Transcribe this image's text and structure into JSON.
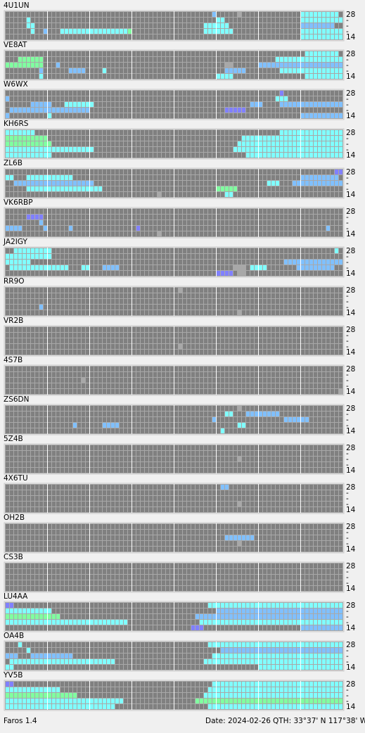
{
  "band_labels": [
    "28",
    "-",
    "-",
    "-",
    "14"
  ],
  "palette": {
    "c": "#80ffff",
    "b": "#80c0ff",
    "p": "#8080ff",
    "g": "#80ffa0",
    "d": "#a8a8a8"
  },
  "stations": [
    {
      "name": "4U1UN",
      "cells": [
        [
          0,
          49,
          49,
          "b"
        ],
        [
          0,
          55,
          55,
          "d"
        ],
        [
          0,
          70,
          78,
          "c"
        ],
        [
          1,
          5,
          5,
          "c"
        ],
        [
          1,
          50,
          51,
          "c"
        ],
        [
          1,
          70,
          79,
          "c"
        ],
        [
          2,
          5,
          6,
          "c"
        ],
        [
          2,
          47,
          52,
          "c"
        ],
        [
          2,
          70,
          77,
          "b"
        ],
        [
          3,
          6,
          6,
          "c"
        ],
        [
          3,
          9,
          9,
          "b"
        ],
        [
          3,
          13,
          28,
          "c"
        ],
        [
          3,
          29,
          29,
          "g"
        ],
        [
          3,
          47,
          53,
          "c"
        ],
        [
          3,
          70,
          79,
          "c"
        ],
        [
          4,
          70,
          79,
          "c"
        ]
      ]
    },
    {
      "name": "VE8AT",
      "cells": [
        [
          0,
          71,
          78,
          "c"
        ],
        [
          1,
          3,
          8,
          "g"
        ],
        [
          1,
          64,
          79,
          "c"
        ],
        [
          2,
          0,
          8,
          "g"
        ],
        [
          2,
          12,
          12,
          "b"
        ],
        [
          2,
          52,
          53,
          "d"
        ],
        [
          2,
          60,
          79,
          "b"
        ],
        [
          3,
          8,
          8,
          "b"
        ],
        [
          3,
          15,
          18,
          "b"
        ],
        [
          3,
          23,
          23,
          "c"
        ],
        [
          3,
          52,
          56,
          "b"
        ],
        [
          3,
          65,
          79,
          "c"
        ],
        [
          4,
          8,
          8,
          "c"
        ],
        [
          4,
          50,
          53,
          "c"
        ],
        [
          4,
          71,
          79,
          "c"
        ]
      ]
    },
    {
      "name": "W6WX",
      "cells": [
        [
          0,
          65,
          65,
          "p"
        ],
        [
          1,
          0,
          0,
          "b"
        ],
        [
          1,
          64,
          66,
          "c"
        ],
        [
          2,
          6,
          10,
          "b"
        ],
        [
          2,
          14,
          20,
          "c"
        ],
        [
          2,
          58,
          60,
          "b"
        ],
        [
          2,
          65,
          79,
          "b"
        ],
        [
          3,
          1,
          19,
          "b"
        ],
        [
          3,
          52,
          56,
          "p"
        ],
        [
          4,
          0,
          0,
          "b"
        ],
        [
          4,
          10,
          10,
          "c"
        ],
        [
          4,
          70,
          79,
          "b"
        ]
      ]
    },
    {
      "name": "KH6RS",
      "cells": [
        [
          0,
          0,
          6,
          "c"
        ],
        [
          0,
          65,
          79,
          "c"
        ],
        [
          1,
          0,
          9,
          "g"
        ],
        [
          1,
          56,
          79,
          "c"
        ],
        [
          2,
          0,
          10,
          "g"
        ],
        [
          2,
          55,
          79,
          "c"
        ],
        [
          3,
          0,
          20,
          "c"
        ],
        [
          3,
          54,
          79,
          "c"
        ],
        [
          4,
          0,
          10,
          "c"
        ],
        [
          4,
          57,
          79,
          "c"
        ]
      ]
    },
    {
      "name": "ZL6B",
      "cells": [
        [
          0,
          78,
          79,
          "p"
        ],
        [
          1,
          0,
          1,
          "c"
        ],
        [
          1,
          5,
          15,
          "c"
        ],
        [
          1,
          70,
          78,
          "b"
        ],
        [
          2,
          2,
          20,
          "b"
        ],
        [
          2,
          62,
          64,
          "c"
        ],
        [
          2,
          68,
          79,
          "b"
        ],
        [
          3,
          5,
          22,
          "c"
        ],
        [
          3,
          50,
          54,
          "g"
        ],
        [
          4,
          36,
          36,
          "d"
        ],
        [
          4,
          52,
          53,
          "c"
        ]
      ]
    },
    {
      "name": "VK6RBP",
      "cells": [
        [
          1,
          5,
          8,
          "p"
        ],
        [
          2,
          8,
          8,
          "b"
        ],
        [
          3,
          0,
          3,
          "b"
        ],
        [
          3,
          9,
          9,
          "b"
        ],
        [
          3,
          15,
          15,
          "b"
        ],
        [
          3,
          31,
          31,
          "p"
        ],
        [
          3,
          76,
          76,
          "b"
        ],
        [
          4,
          36,
          36,
          "d"
        ]
      ]
    },
    {
      "name": "JA2IGY",
      "cells": [
        [
          0,
          2,
          10,
          "c"
        ],
        [
          0,
          78,
          78,
          "c"
        ],
        [
          1,
          0,
          10,
          "c"
        ],
        [
          2,
          0,
          5,
          "c"
        ],
        [
          2,
          66,
          79,
          "b"
        ],
        [
          3,
          1,
          14,
          "c"
        ],
        [
          3,
          18,
          19,
          "c"
        ],
        [
          3,
          23,
          26,
          "b"
        ],
        [
          3,
          54,
          56,
          "d"
        ],
        [
          3,
          58,
          61,
          "c"
        ],
        [
          3,
          69,
          77,
          "b"
        ],
        [
          4,
          50,
          53,
          "p"
        ],
        [
          4,
          55,
          56,
          "d"
        ]
      ]
    },
    {
      "name": "RR9O",
      "cells": [
        [
          0,
          41,
          41,
          "d"
        ],
        [
          3,
          8,
          8,
          "b"
        ],
        [
          4,
          55,
          55,
          "d"
        ]
      ]
    },
    {
      "name": "VR2B",
      "cells": [
        [
          3,
          41,
          41,
          "d"
        ]
      ]
    },
    {
      "name": "4S7B",
      "cells": [
        [
          2,
          18,
          18,
          "d"
        ],
        [
          4,
          79,
          79,
          "d"
        ]
      ]
    },
    {
      "name": "ZS6DN",
      "cells": [
        [
          0,
          55,
          55,
          "d"
        ],
        [
          1,
          52,
          53,
          "c"
        ],
        [
          1,
          57,
          64,
          "b"
        ],
        [
          2,
          49,
          49,
          "b"
        ],
        [
          2,
          66,
          71,
          "b"
        ],
        [
          3,
          16,
          16,
          "b"
        ],
        [
          3,
          23,
          26,
          "b"
        ],
        [
          3,
          55,
          56,
          "c"
        ],
        [
          4,
          51,
          51,
          "c"
        ]
      ]
    },
    {
      "name": "5Z4B",
      "cells": [
        [
          2,
          55,
          55,
          "d"
        ]
      ]
    },
    {
      "name": "4X6TU",
      "cells": [
        [
          0,
          51,
          52,
          "b"
        ],
        [
          3,
          55,
          55,
          "d"
        ]
      ]
    },
    {
      "name": "OH2B",
      "cells": [
        [
          2,
          52,
          58,
          "b"
        ],
        [
          3,
          55,
          55,
          "d"
        ]
      ]
    },
    {
      "name": "CS3B",
      "cells": []
    },
    {
      "name": "LU4AA",
      "cells": [
        [
          0,
          0,
          1,
          "p"
        ],
        [
          0,
          48,
          79,
          "c"
        ],
        [
          1,
          0,
          10,
          "c"
        ],
        [
          1,
          50,
          79,
          "b"
        ],
        [
          2,
          0,
          12,
          "g"
        ],
        [
          2,
          45,
          79,
          "b"
        ],
        [
          3,
          0,
          28,
          "c"
        ],
        [
          3,
          46,
          79,
          "c"
        ],
        [
          4,
          44,
          46,
          "p"
        ],
        [
          4,
          70,
          79,
          "b"
        ]
      ]
    },
    {
      "name": "OA4B",
      "cells": [
        [
          0,
          3,
          3,
          "c"
        ],
        [
          0,
          48,
          79,
          "c"
        ],
        [
          1,
          5,
          5,
          "c"
        ],
        [
          1,
          51,
          79,
          "b"
        ],
        [
          2,
          0,
          2,
          "b"
        ],
        [
          2,
          6,
          15,
          "b"
        ],
        [
          2,
          49,
          79,
          "c"
        ],
        [
          3,
          1,
          25,
          "c"
        ],
        [
          3,
          47,
          79,
          "c"
        ],
        [
          4,
          0,
          1,
          "c"
        ],
        [
          4,
          60,
          79,
          "c"
        ]
      ]
    },
    {
      "name": "YV5B",
      "cells": [
        [
          0,
          0,
          1,
          "p"
        ],
        [
          0,
          49,
          79,
          "c"
        ],
        [
          1,
          0,
          12,
          "c"
        ],
        [
          1,
          48,
          79,
          "c"
        ],
        [
          2,
          0,
          16,
          "g"
        ],
        [
          2,
          47,
          79,
          "c"
        ],
        [
          3,
          0,
          27,
          "c"
        ],
        [
          3,
          45,
          79,
          "g"
        ],
        [
          4,
          0,
          25,
          "c"
        ],
        [
          4,
          48,
          79,
          "c"
        ]
      ]
    }
  ],
  "footer": {
    "app": "Faros 1.4",
    "date": "Date: 2024-02-26",
    "qth": "QTH: 33°37' N  117°38' W"
  }
}
